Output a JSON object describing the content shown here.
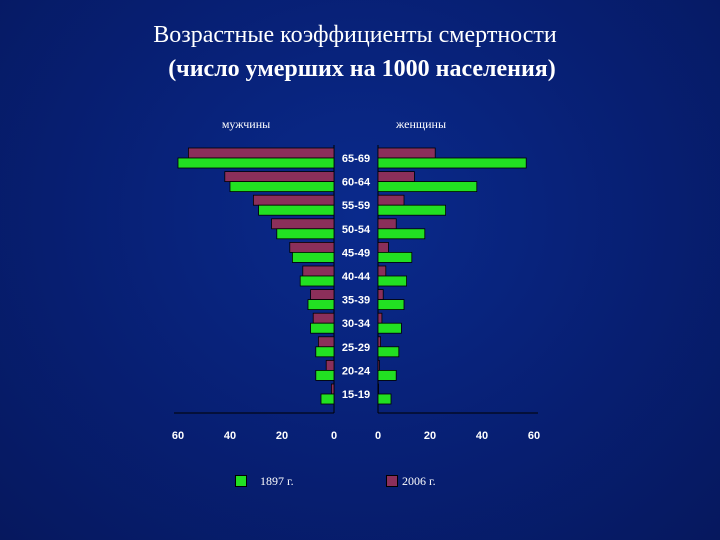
{
  "slide": {
    "title_line1": "Возрастные коэффициенты смертности",
    "title_line2": "(число умерших на 1000 населения)"
  },
  "chart_data": {
    "type": "bar",
    "orientation": "population-pyramid",
    "panels": [
      "мужчины",
      "женщины"
    ],
    "categories": [
      "65-69",
      "60-64",
      "55-59",
      "50-54",
      "45-49",
      "40-44",
      "35-39",
      "30-34",
      "25-29",
      "20-24",
      "15-19"
    ],
    "series": [
      {
        "name": "1897 г.",
        "color": "#22e022",
        "men": [
          60,
          40,
          29,
          22,
          16,
          13,
          10,
          9,
          7,
          7,
          5
        ],
        "women": [
          57,
          38,
          26,
          18,
          13,
          11,
          10,
          9,
          8,
          7,
          5
        ]
      },
      {
        "name": "2006 г.",
        "color": "#8b2f5a",
        "men": [
          56,
          42,
          31,
          24,
          17,
          12,
          9,
          8,
          6,
          3,
          1
        ],
        "women": [
          22,
          14,
          10,
          7,
          4,
          3,
          2,
          1.5,
          1,
          0.5,
          0.2
        ]
      }
    ],
    "xticks": [
      "60",
      "40",
      "20",
      "0",
      "0",
      "20",
      "40",
      "60"
    ],
    "xlim": [
      0,
      60
    ],
    "legend_position": "bottom"
  }
}
